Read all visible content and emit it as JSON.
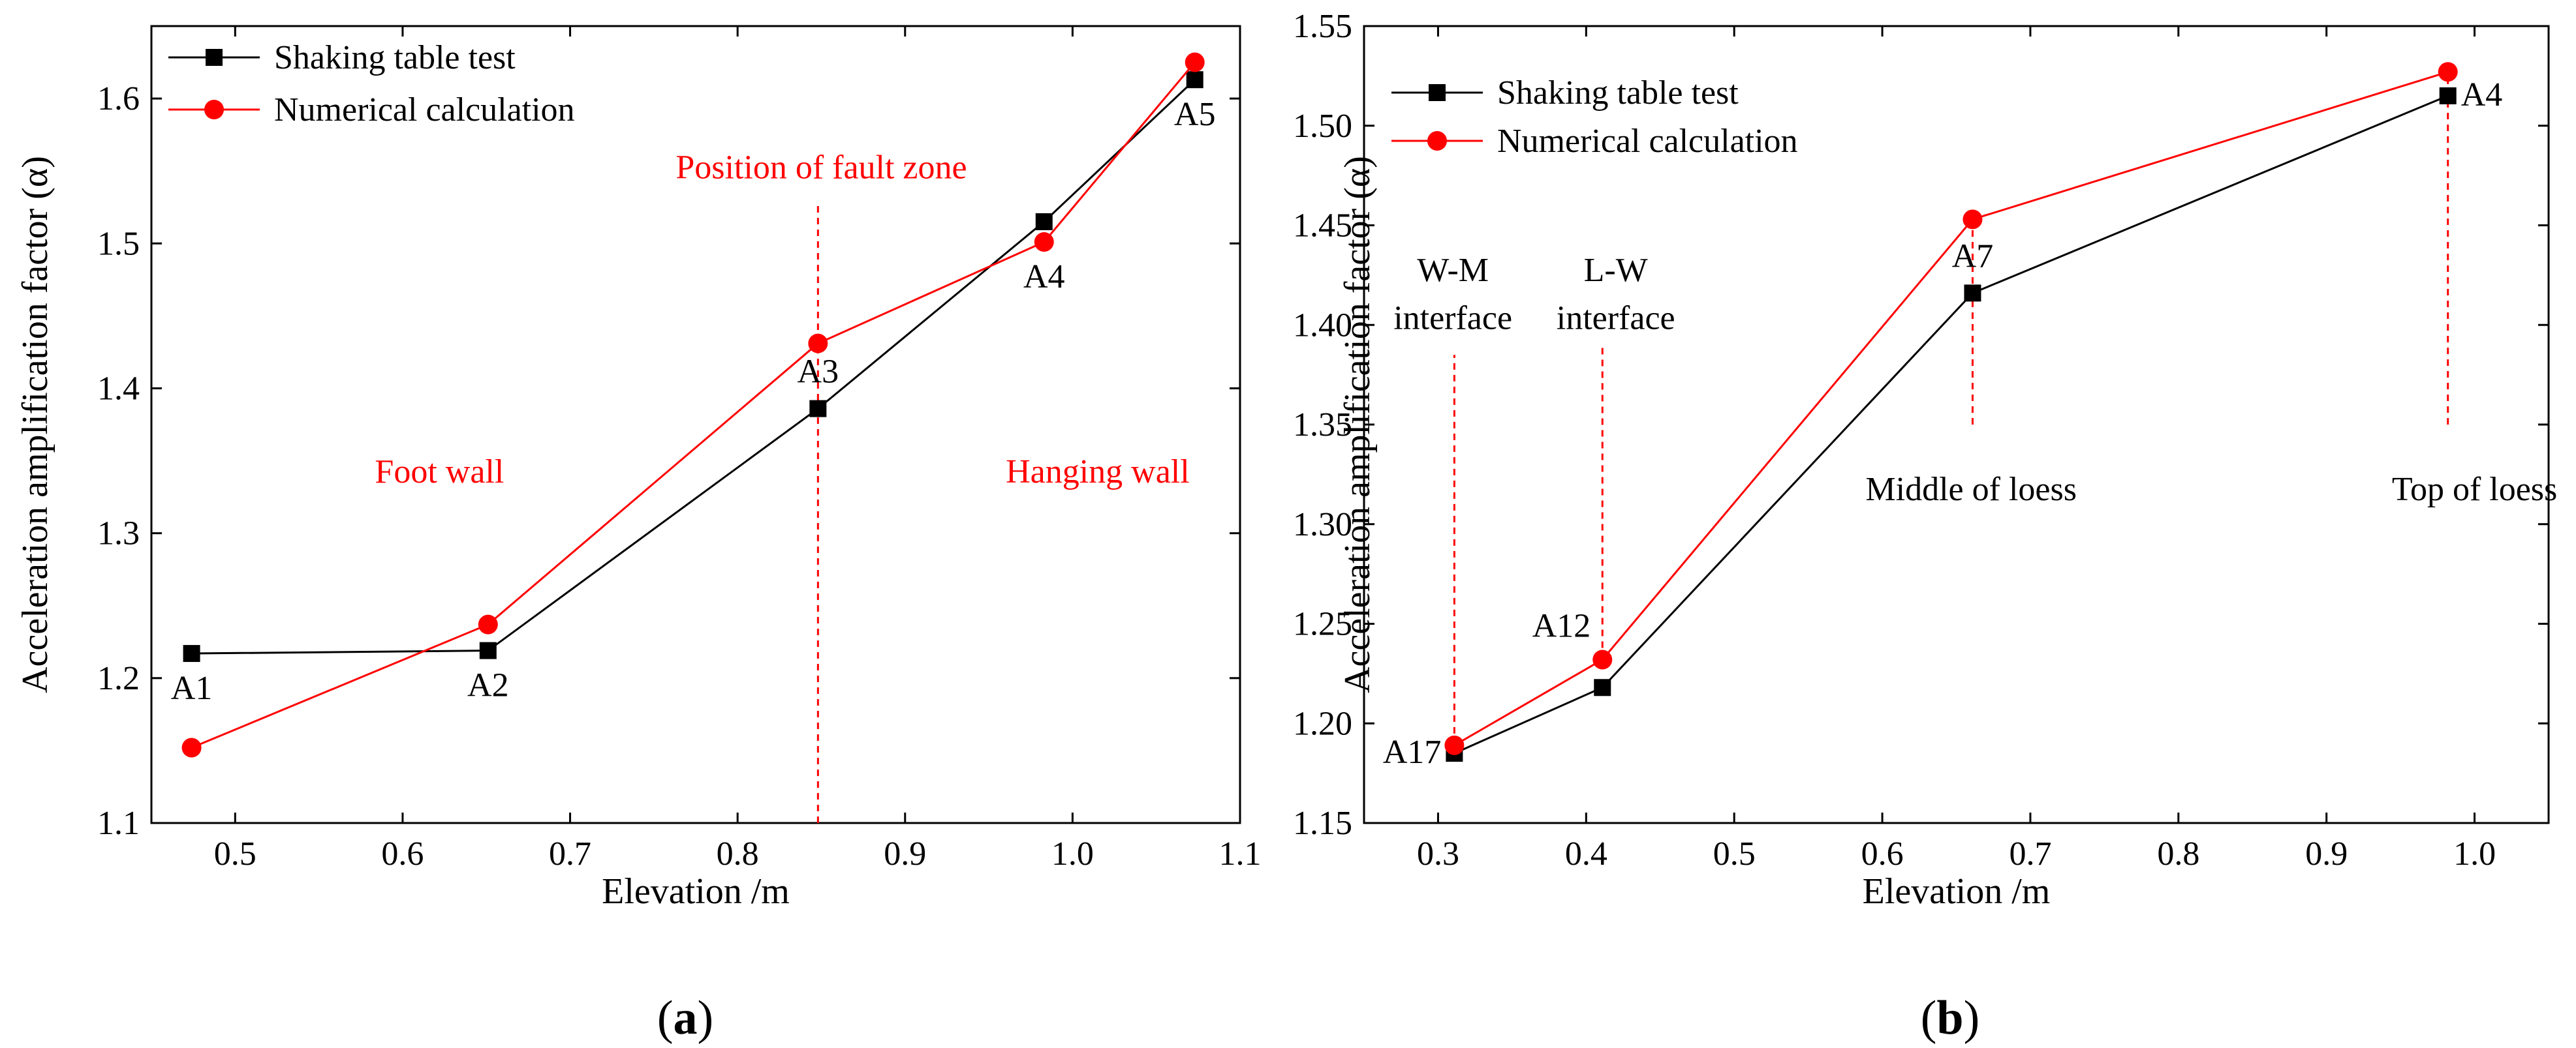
{
  "figure": {
    "panels": [
      "a",
      "b"
    ],
    "label_a": "a",
    "label_b": "b"
  },
  "colors": {
    "black": "#000000",
    "red": "#ff0000"
  },
  "chart_data": [
    {
      "type": "line",
      "panel": "a",
      "xlabel": "Elevation /m",
      "ylabel": "Acceleration amplification factor (α)",
      "xlim": [
        0.45,
        1.1
      ],
      "ylim": [
        1.1,
        1.65
      ],
      "xticks": [
        0.5,
        0.6,
        0.7,
        0.8,
        0.9,
        1.0,
        1.1
      ],
      "xtick_labels": [
        "0.5",
        "0.6",
        "0.7",
        "0.8",
        "0.9",
        "1.0",
        "1.1"
      ],
      "yticks": [
        1.1,
        1.2,
        1.3,
        1.4,
        1.5,
        1.6
      ],
      "ytick_labels": [
        "1.1",
        "1.2",
        "1.3",
        "1.4",
        "1.5",
        "1.6"
      ],
      "legend_position": "top-left",
      "series": [
        {
          "name": "Shaking table test",
          "color": "#000000",
          "marker": "square",
          "x": [
            0.474,
            0.651,
            0.848,
            0.983,
            1.073
          ],
          "y": [
            1.217,
            1.219,
            1.386,
            1.515,
            1.613
          ]
        },
        {
          "name": "Numerical calculation",
          "color": "#ff0000",
          "marker": "circle",
          "x": [
            0.474,
            0.651,
            0.848,
            0.983,
            1.073
          ],
          "y": [
            1.152,
            1.237,
            1.431,
            1.501,
            1.625
          ]
        }
      ],
      "point_labels": [
        {
          "text": "A1",
          "x": 0.474,
          "y": 1.217,
          "anchor": "below"
        },
        {
          "text": "A2",
          "x": 0.651,
          "y": 1.219,
          "anchor": "below"
        },
        {
          "text": "A3",
          "x": 0.848,
          "y": 1.386,
          "anchor": "above"
        },
        {
          "text": "A4",
          "x": 0.983,
          "y": 1.501,
          "anchor": "below"
        },
        {
          "text": "A5",
          "x": 1.073,
          "y": 1.613,
          "anchor": "below"
        }
      ],
      "reference_lines": [
        {
          "x": 0.848,
          "y_from": 1.1,
          "y_to": 1.528
        }
      ],
      "annotations": [
        {
          "text": "Position of fault zone",
          "x": 0.85,
          "y": 1.545
        },
        {
          "text": "Foot wall",
          "x": 0.622,
          "y": 1.335
        },
        {
          "text": "Hanging wall",
          "x": 1.015,
          "y": 1.335
        }
      ]
    },
    {
      "type": "line",
      "panel": "b",
      "xlabel": "Elevation /m",
      "ylabel": "Acceleration amplification factor (α)",
      "xlim": [
        0.25,
        1.05
      ],
      "ylim": [
        1.15,
        1.55
      ],
      "xticks": [
        0.3,
        0.4,
        0.5,
        0.6,
        0.7,
        0.8,
        0.9,
        1.0
      ],
      "xtick_labels": [
        "0.3",
        "0.4",
        "0.5",
        "0.6",
        "0.7",
        "0.8",
        "0.9",
        "1.0"
      ],
      "yticks": [
        1.15,
        1.2,
        1.25,
        1.3,
        1.35,
        1.4,
        1.45,
        1.5,
        1.55
      ],
      "ytick_labels": [
        "1.15",
        "1.20",
        "1.25",
        "1.30",
        "1.35",
        "1.40",
        "1.45",
        "1.50",
        "1.55"
      ],
      "legend_position": "top-left",
      "series": [
        {
          "name": "Shaking table test",
          "color": "#000000",
          "marker": "square",
          "x": [
            0.311,
            0.411,
            0.661,
            0.982
          ],
          "y": [
            1.185,
            1.218,
            1.416,
            1.515
          ]
        },
        {
          "name": "Numerical calculation",
          "color": "#ff0000",
          "marker": "circle",
          "x": [
            0.311,
            0.411,
            0.661,
            0.982
          ],
          "y": [
            1.189,
            1.232,
            1.453,
            1.527
          ]
        }
      ],
      "point_labels": [
        {
          "text": "A17",
          "x": 0.311,
          "y": 1.185,
          "anchor": "left"
        },
        {
          "text": "A12",
          "x": 0.411,
          "y": 1.232,
          "anchor": "above-left"
        },
        {
          "text": "A7",
          "x": 0.661,
          "y": 1.416,
          "anchor": "above"
        },
        {
          "text": "A4",
          "x": 0.982,
          "y": 1.515,
          "anchor": "right"
        }
      ],
      "reference_lines": [
        {
          "x": 0.311,
          "y_from": 1.189,
          "y_to": 1.385
        },
        {
          "x": 0.411,
          "y_from": 1.232,
          "y_to": 1.39
        },
        {
          "x": 0.661,
          "y_from": 1.35,
          "y_to": 1.453
        },
        {
          "x": 0.982,
          "y_from": 1.35,
          "y_to": 1.527
        }
      ],
      "annotations": [
        {
          "text": "W-M",
          "x": 0.31,
          "y": 1.422
        },
        {
          "text": "interface",
          "x": 0.31,
          "y": 1.398
        },
        {
          "text": "L-W",
          "x": 0.42,
          "y": 1.422
        },
        {
          "text": "interface",
          "x": 0.42,
          "y": 1.398
        },
        {
          "text": "Middle of loess",
          "x": 0.66,
          "y": 1.312
        },
        {
          "text": "Top of loess",
          "x": 1.0,
          "y": 1.312
        }
      ]
    }
  ]
}
